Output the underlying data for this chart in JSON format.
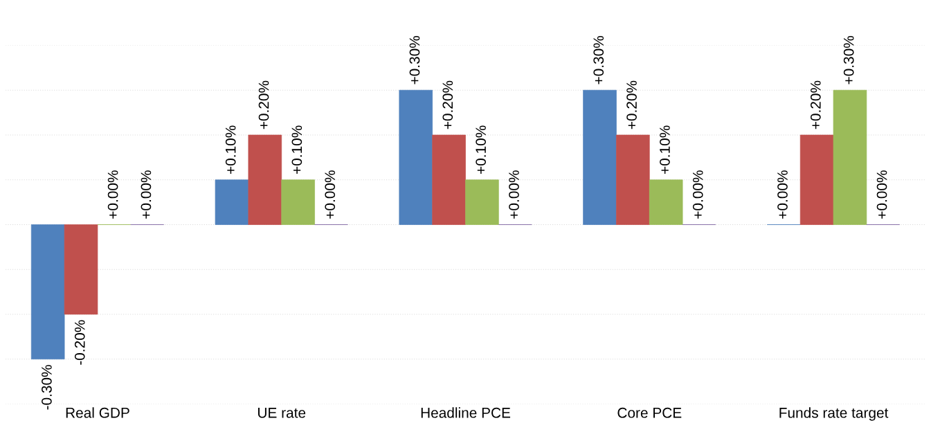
{
  "chart_data": {
    "type": "bar",
    "categories": [
      "Real GDP",
      "UE rate",
      "Headline PCE",
      "Core PCE",
      "Funds rate target"
    ],
    "series": [
      {
        "color": "#4f81bd",
        "values": [
          -0.3,
          0.1,
          0.3,
          0.3,
          0.0
        ],
        "value_labels": [
          "-0.30%",
          "+0.10%",
          "+0.30%",
          "+0.30%",
          "+0.00%"
        ]
      },
      {
        "color": "#c0504d",
        "values": [
          -0.2,
          0.2,
          0.2,
          0.2,
          0.2
        ],
        "value_labels": [
          "-0.20%",
          "+0.20%",
          "+0.20%",
          "+0.20%",
          "+0.20%"
        ]
      },
      {
        "color": "#9bbb59",
        "values": [
          0.0,
          0.1,
          0.1,
          0.1,
          0.3
        ],
        "value_labels": [
          "+0.00%",
          "+0.10%",
          "+0.10%",
          "+0.10%",
          "+0.30%"
        ]
      },
      {
        "color": "#8064a2",
        "values": [
          0.0,
          0.0,
          0.0,
          0.0,
          0.0
        ],
        "value_labels": [
          "+0.00%",
          "+0.00%",
          "+0.00%",
          "+0.00%",
          "+0.00%"
        ]
      }
    ],
    "yticks": [
      {
        "value": -0.4,
        "label": null
      },
      {
        "value": -0.3,
        "label": null
      },
      {
        "value": -0.2,
        "label": null
      },
      {
        "value": -0.1,
        "label": null
      },
      {
        "value": 0,
        "label": null
      },
      {
        "value": 0.1,
        "label": null
      },
      {
        "value": 0.2,
        "label": null
      },
      {
        "value": 0.3,
        "label": null
      },
      {
        "value": 0.4,
        "label": null
      }
    ],
    "grid": "y",
    "tick_labels": "x"
  }
}
